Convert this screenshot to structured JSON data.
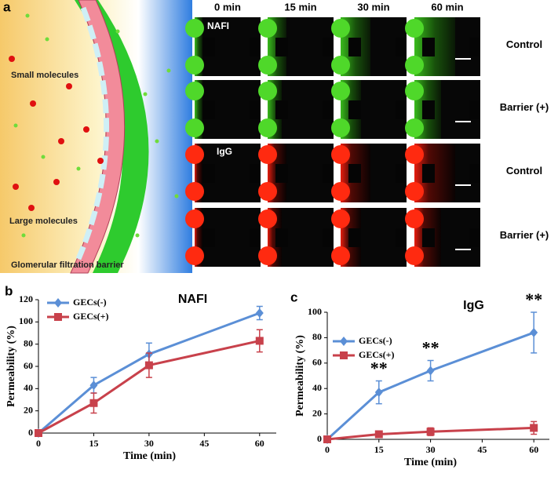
{
  "panel_a": {
    "letter": "a",
    "columns": [
      "0 min",
      "15 min",
      "30 min",
      "60 min"
    ],
    "rows": [
      "Control",
      "Barrier (+)",
      "Control",
      "Barrier (+)"
    ],
    "image_labels": [
      "NAFI",
      "IgG"
    ],
    "schematic_labels": [
      "Small molecules",
      "Large molecules",
      "Glomerular filtration barrier"
    ]
  },
  "chart_data": [
    {
      "type": "line",
      "letter": "b",
      "title": "NAFI",
      "xlabel": "Time  (min)",
      "ylabel": "Permeability  (%)",
      "x": [
        0,
        15,
        30,
        60
      ],
      "xlim": [
        0,
        60
      ],
      "xticks": [
        0,
        15,
        30,
        45,
        60
      ],
      "ylim": [
        0,
        120
      ],
      "yticks": [
        0,
        20,
        40,
        60,
        80,
        100,
        120
      ],
      "legend": "upper left",
      "series": [
        {
          "name": "GECs(-)",
          "color": "#5b8fd6",
          "marker": "diamond",
          "values": [
            0,
            43,
            71,
            108
          ],
          "errors": [
            0,
            7,
            10,
            6
          ]
        },
        {
          "name": "GECs(+)",
          "color": "#c8414b",
          "marker": "square",
          "values": [
            0,
            27,
            61,
            83
          ],
          "errors": [
            0,
            9,
            11,
            10
          ]
        }
      ]
    },
    {
      "type": "line",
      "letter": "c",
      "title": "IgG",
      "xlabel": "Time  (min)",
      "ylabel": "Permeability  (%)",
      "x": [
        0,
        15,
        30,
        60
      ],
      "xlim": [
        0,
        60
      ],
      "xticks": [
        0,
        15,
        30,
        45,
        60
      ],
      "ylim": [
        0,
        100
      ],
      "yticks": [
        0,
        20,
        40,
        60,
        80,
        100
      ],
      "legend": "upper left",
      "series": [
        {
          "name": "GECs(-)",
          "color": "#5b8fd6",
          "marker": "diamond",
          "values": [
            0,
            37,
            54,
            84
          ],
          "errors": [
            0,
            9,
            8,
            16
          ]
        },
        {
          "name": "GECs(+)",
          "color": "#c8414b",
          "marker": "square",
          "values": [
            0,
            4,
            6,
            9
          ],
          "errors": [
            0,
            2,
            3,
            5
          ]
        }
      ],
      "annotations": [
        {
          "text": "**",
          "x": 15
        },
        {
          "text": "**",
          "x": 30
        },
        {
          "text": "**",
          "x": 60
        }
      ]
    }
  ]
}
